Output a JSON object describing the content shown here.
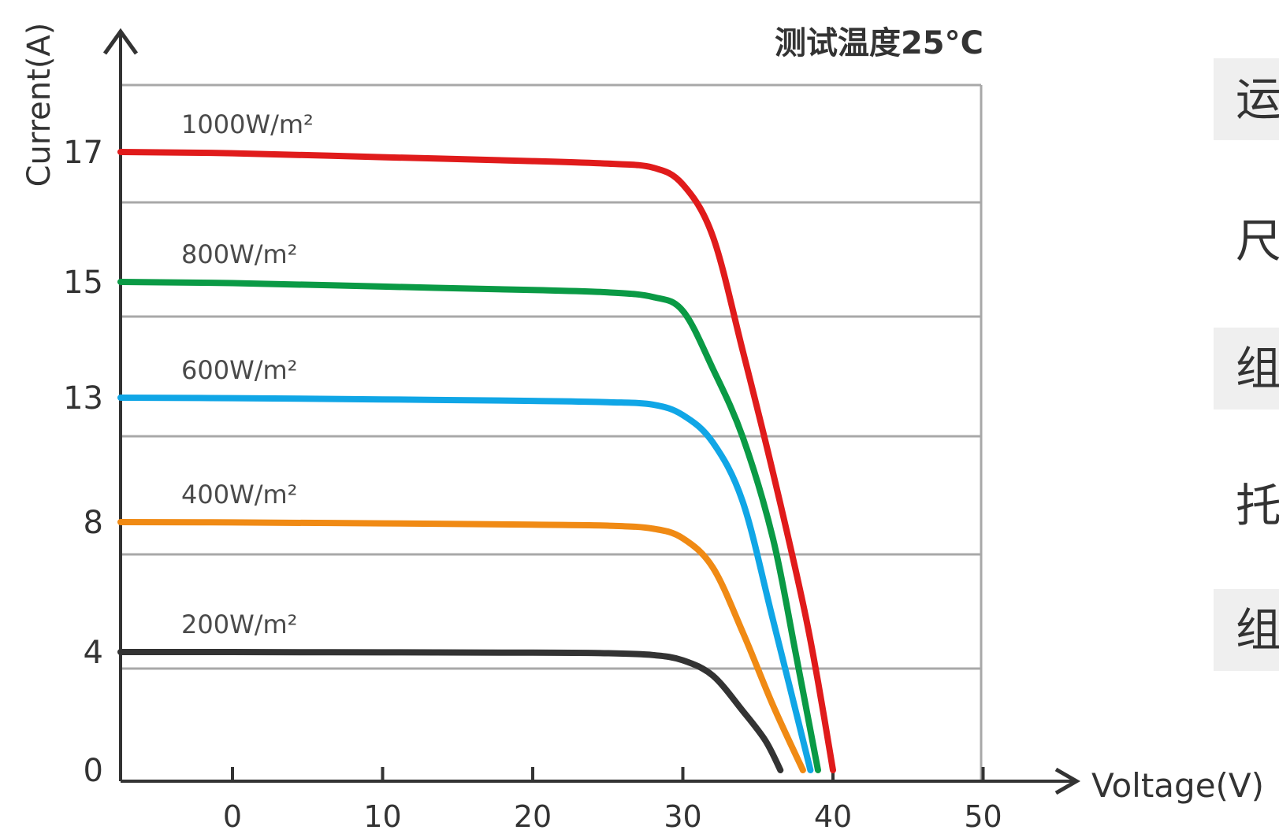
{
  "chart_data": {
    "type": "line",
    "annotation": "测试温度25°C",
    "xlabel": "Voltage(V)",
    "ylabel": "Current(A)",
    "x_ticks": [
      0,
      10,
      20,
      30,
      40,
      50
    ],
    "y_ticks": [
      {
        "label": "0",
        "current": 0
      },
      {
        "label": "4",
        "current": 4
      },
      {
        "label": "8",
        "current": 8
      },
      {
        "label": "13",
        "current": 13
      },
      {
        "label": "15",
        "current": 15
      },
      {
        "label": "17",
        "current": 17
      }
    ],
    "grid": true,
    "series": [
      {
        "name": "1000W/m²",
        "color": "#e01b1b",
        "isc": 17.0,
        "voc": 40.0,
        "points": [
          [
            -7.5,
            17.0
          ],
          [
            0,
            16.98
          ],
          [
            10,
            16.92
          ],
          [
            20,
            16.86
          ],
          [
            25,
            16.82
          ],
          [
            28,
            16.76
          ],
          [
            30,
            16.5
          ],
          [
            32,
            15.7
          ],
          [
            34,
            13.8
          ],
          [
            36,
            10.0
          ],
          [
            38,
            5.5
          ],
          [
            39,
            3.0
          ],
          [
            40,
            0
          ]
        ]
      },
      {
        "name": "800W/m²",
        "color": "#0a9a45",
        "isc": 15.0,
        "voc": 39.0,
        "points": [
          [
            -7.5,
            15.0
          ],
          [
            0,
            14.98
          ],
          [
            10,
            14.92
          ],
          [
            20,
            14.86
          ],
          [
            25,
            14.82
          ],
          [
            28,
            14.74
          ],
          [
            30,
            14.5
          ],
          [
            32,
            13.5
          ],
          [
            34,
            11.4
          ],
          [
            36,
            7.5
          ],
          [
            37.5,
            4.0
          ],
          [
            39,
            0
          ]
        ]
      },
      {
        "name": "600W/m²",
        "color": "#10a6e6",
        "isc": 13.0,
        "voc": 38.5,
        "points": [
          [
            -7.5,
            13.0
          ],
          [
            0,
            12.98
          ],
          [
            10,
            12.93
          ],
          [
            20,
            12.87
          ],
          [
            25,
            12.82
          ],
          [
            28,
            12.72
          ],
          [
            30,
            12.3
          ],
          [
            32,
            11.2
          ],
          [
            34,
            8.8
          ],
          [
            36,
            5.0
          ],
          [
            38.5,
            0
          ]
        ]
      },
      {
        "name": "400W/m²",
        "color": "#f08a14",
        "isc": 8.0,
        "voc": 38.0,
        "points": [
          [
            -7.5,
            8.0
          ],
          [
            0,
            7.99
          ],
          [
            10,
            7.96
          ],
          [
            20,
            7.92
          ],
          [
            25,
            7.89
          ],
          [
            28,
            7.8
          ],
          [
            30,
            7.5
          ],
          [
            32,
            6.6
          ],
          [
            34,
            4.6
          ],
          [
            36,
            2.2
          ],
          [
            38,
            0
          ]
        ]
      },
      {
        "name": "200W/m²",
        "color": "#333333",
        "isc": 4.0,
        "voc": 36.5,
        "points": [
          [
            -7.5,
            4.0
          ],
          [
            0,
            4.0
          ],
          [
            10,
            3.99
          ],
          [
            20,
            3.98
          ],
          [
            25,
            3.96
          ],
          [
            28,
            3.9
          ],
          [
            30,
            3.72
          ],
          [
            32,
            3.2
          ],
          [
            34,
            2.0
          ],
          [
            35.5,
            1.0
          ],
          [
            36.5,
            0
          ]
        ]
      }
    ]
  },
  "side_panel": {
    "items": [
      {
        "text": "运",
        "shaded": true
      },
      {
        "text": "尺",
        "shaded": false
      },
      {
        "text": "组",
        "shaded": true
      },
      {
        "text": "托",
        "shaded": false
      },
      {
        "text": "组",
        "shaded": true
      }
    ]
  }
}
